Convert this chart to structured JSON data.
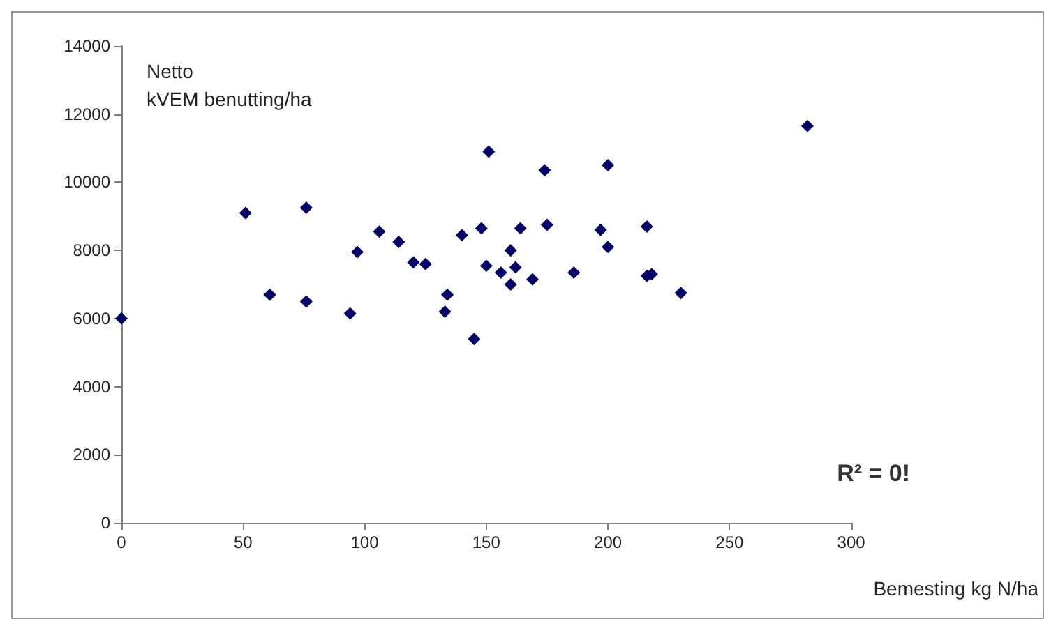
{
  "chart_data": {
    "type": "scatter",
    "ylabel": "Netto\nkVEM benutting/ha",
    "xlabel": "Bemesting kg N/ha",
    "annotations": [
      "R² = 0!"
    ],
    "x": [
      0,
      51,
      61,
      76,
      76,
      94,
      97,
      106,
      114,
      120,
      125,
      133,
      134,
      140,
      145,
      148,
      150,
      151,
      156,
      160,
      160,
      162,
      164,
      169,
      174,
      175,
      186,
      197,
      200,
      200,
      216,
      216,
      218,
      230,
      282
    ],
    "values": [
      6000,
      9100,
      6700,
      9250,
      6500,
      6150,
      7950,
      8550,
      8250,
      7650,
      7600,
      6200,
      6700,
      8450,
      5400,
      8650,
      7550,
      10900,
      7350,
      8000,
      7000,
      7500,
      8650,
      7150,
      10350,
      8750,
      7350,
      8600,
      10500,
      8100,
      8700,
      7250,
      7300,
      6750,
      11650
    ],
    "color": "#000066",
    "marker": "diamond",
    "grid": false,
    "xlim": [
      0,
      300
    ],
    "xticks": [
      0,
      50,
      100,
      150,
      200,
      250,
      300
    ],
    "ylim": [
      0,
      14000
    ],
    "yticks": [
      0,
      2000,
      4000,
      6000,
      8000,
      10000,
      12000,
      14000
    ]
  }
}
